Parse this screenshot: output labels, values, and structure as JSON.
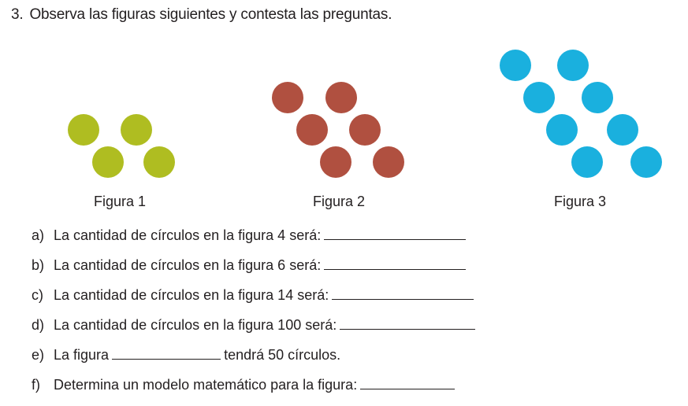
{
  "heading": {
    "number": "3.",
    "text": "Observa las figuras siguientes y contesta las preguntas."
  },
  "figures": [
    {
      "label": "Figura 1",
      "color": "#afbd21"
    },
    {
      "label": "Figura 2",
      "color": "#b05040"
    },
    {
      "label": "Figura 3",
      "color": "#1ab0de"
    }
  ],
  "questions": [
    {
      "letter": "a)",
      "before": "La cantidad de círculos en la figura 4 será:",
      "after": ""
    },
    {
      "letter": "b)",
      "before": "La cantidad de círculos en la figura 6 será:",
      "after": ""
    },
    {
      "letter": "c)",
      "before": "La cantidad de círculos en la figura 14 será:",
      "after": ""
    },
    {
      "letter": "d)",
      "before": "La cantidad de círculos en la figura 100 será:",
      "after": ""
    },
    {
      "letter": "e)",
      "before": "La figura",
      "after": "tendrá 50 círculos."
    },
    {
      "letter": "f)",
      "before": "Determina un modelo matemático para la figura:",
      "after": ""
    }
  ]
}
